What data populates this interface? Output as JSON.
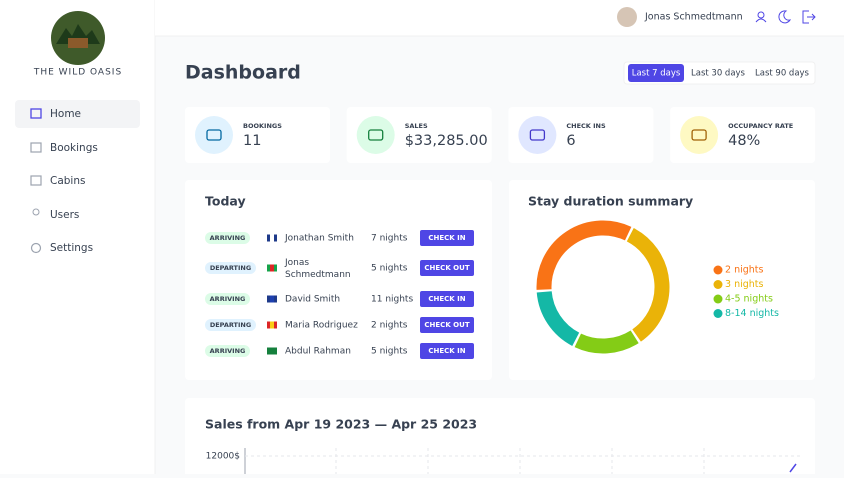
{
  "sidebar": {
    "logo_text": "THE WILD OASIS",
    "nav": [
      "Home",
      "Bookings",
      "Cabins",
      "Users",
      "Settings"
    ]
  },
  "header": {
    "user": "Jonas Schmedtmann"
  },
  "page_title": "Dashboard",
  "filters": [
    "Last 7 days",
    "Last 30 days",
    "Last 90 days"
  ],
  "stats": [
    {
      "label": "BOOKINGS",
      "value": "11"
    },
    {
      "label": "SALES",
      "value": "$33,285.00"
    },
    {
      "label": "CHECK INS",
      "value": "6"
    },
    {
      "label": "OCCUPANCY RATE",
      "value": "48%"
    }
  ],
  "today": {
    "title": "Today",
    "rows": [
      {
        "status": "ARRIVING",
        "guest": "Jonathan Smith",
        "nights": "7 nights",
        "action": "CHECK IN"
      },
      {
        "status": "DEPARTING",
        "guest": "Jonas Schmedtmann",
        "nights": "5 nights",
        "action": "CHECK OUT"
      },
      {
        "status": "ARRIVING",
        "guest": "David Smith",
        "nights": "11 nights",
        "action": "CHECK IN"
      },
      {
        "status": "DEPARTING",
        "guest": "Maria Rodriguez",
        "nights": "2 nights",
        "action": "CHECK OUT"
      },
      {
        "status": "ARRIVING",
        "guest": "Abdul Rahman",
        "nights": "5 nights",
        "action": "CHECK IN"
      }
    ]
  },
  "stay_chart": {
    "type": "pie",
    "title": "Stay duration summary",
    "series": [
      {
        "name": "2 nights",
        "color": "#f97316",
        "value": 4
      },
      {
        "name": "3 nights",
        "color": "#eab308",
        "value": 4
      },
      {
        "name": "4-5 nights",
        "color": "#84cc16",
        "value": 2
      },
      {
        "name": "8-14 nights",
        "color": "#14b8a6",
        "value": 2
      }
    ]
  },
  "sales_chart": {
    "title": "Sales from Apr 19 2023 — Apr 25 2023",
    "yticks": [
      {
        "value": 12000,
        "label": "12000$"
      }
    ]
  }
}
